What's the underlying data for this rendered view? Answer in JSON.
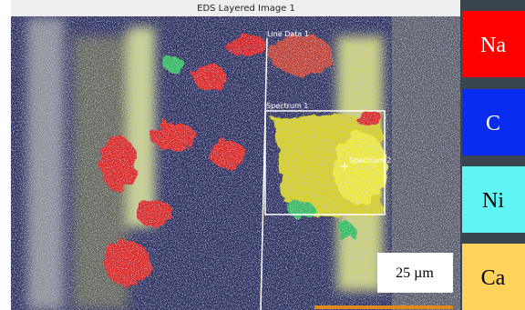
{
  "header": {
    "title": "EDS Layered Image 1"
  },
  "image": {
    "annotations": {
      "line": "Line Data 1",
      "spectrum_1": "Spectrum 1",
      "spectrum_2": "Spectrum 2"
    },
    "scale_bar": "25 µm"
  },
  "legend": [
    {
      "label": "Na",
      "color": "#ff0000"
    },
    {
      "label": "C",
      "color": "#0a2cf0"
    },
    {
      "label": "Ni",
      "color": "#5ff5f5"
    },
    {
      "label": "Ca",
      "color": "#fdd35c"
    }
  ]
}
